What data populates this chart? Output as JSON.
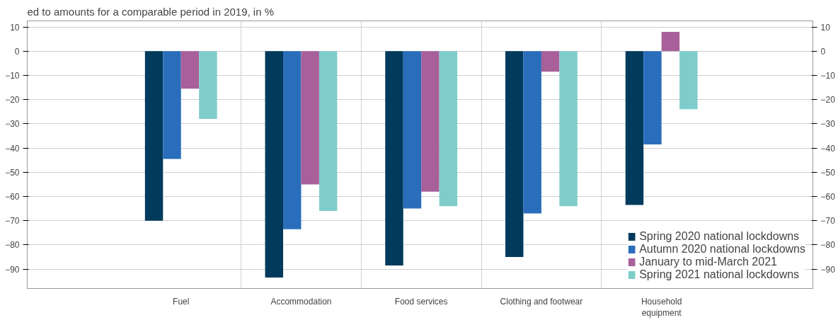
{
  "chart_data": {
    "type": "bar",
    "title": "ed to amounts for a comparable period in 2019, in %",
    "categories": [
      "Fuel",
      "Accommodation",
      "Food services",
      "Clothing and footwear",
      "Household equipment"
    ],
    "series": [
      {
        "name": "Spring 2020 national lockdowns",
        "color": "#003a5c",
        "values": [
          -70,
          -93.5,
          -88.5,
          -85,
          -63.5
        ]
      },
      {
        "name": "Autumn 2020 national lockdowns",
        "color": "#2a6ebb",
        "values": [
          -44.5,
          -73.5,
          -65,
          -67,
          -38.5
        ]
      },
      {
        "name": "January to mid-March 2021",
        "color": "#a8609a",
        "values": [
          -15.5,
          -55,
          -58,
          -8.5,
          8
        ]
      },
      {
        "name": "Spring 2021 national lockdowns",
        "color": "#7fcdcb",
        "values": [
          -28,
          -66,
          -64,
          -64,
          -24
        ]
      }
    ],
    "ylim": [
      -98,
      12.5
    ],
    "yticks": [
      10,
      0,
      -10,
      -20,
      -30,
      -40,
      -50,
      -60,
      -70,
      -80,
      -90
    ],
    "y2lim": [
      -98,
      12.5
    ],
    "y2ticks": [
      10,
      0,
      -10,
      -20,
      -30,
      -40,
      -50,
      -60,
      -70,
      -80,
      -90
    ],
    "grid": true,
    "legend": "bottom right"
  }
}
